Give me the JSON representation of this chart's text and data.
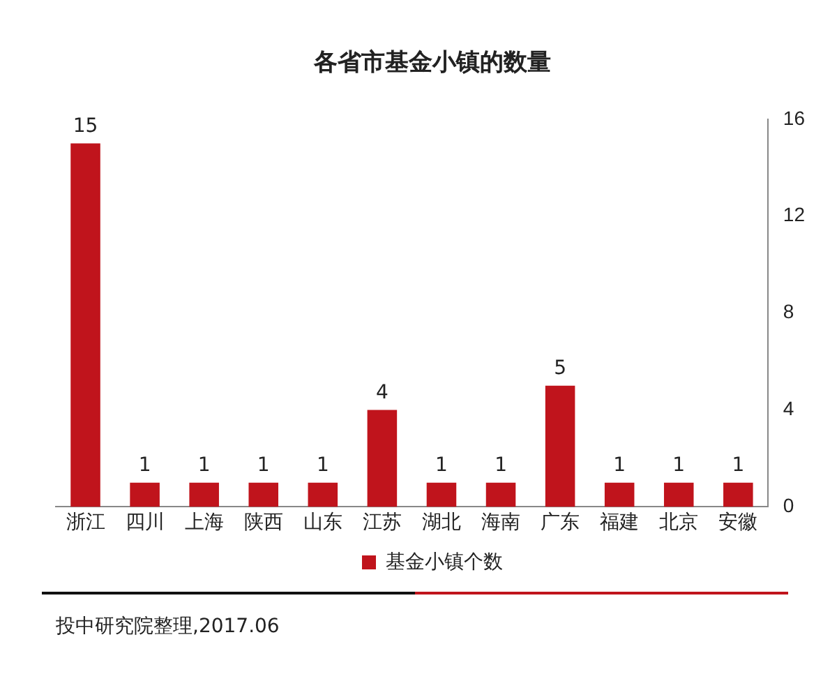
{
  "chart_data": {
    "type": "bar",
    "title": "各省市基金小镇的数量",
    "categories": [
      "浙江",
      "四川",
      "上海",
      "陕西",
      "山东",
      "江苏",
      "湖北",
      "海南",
      "广东",
      "福建",
      "北京",
      "安徽"
    ],
    "series": [
      {
        "name": "基金小镇个数",
        "color": "#c0141c",
        "values": [
          15,
          1,
          1,
          1,
          1,
          4,
          1,
          1,
          5,
          1,
          1,
          1
        ]
      }
    ],
    "ylim": [
      0,
      16
    ],
    "yticks": [
      0,
      4,
      8,
      12,
      16
    ],
    "grid": false,
    "legend": "bottom",
    "data_labels": true,
    "annotations": [
      "投中研究院整理,2017.06"
    ]
  }
}
